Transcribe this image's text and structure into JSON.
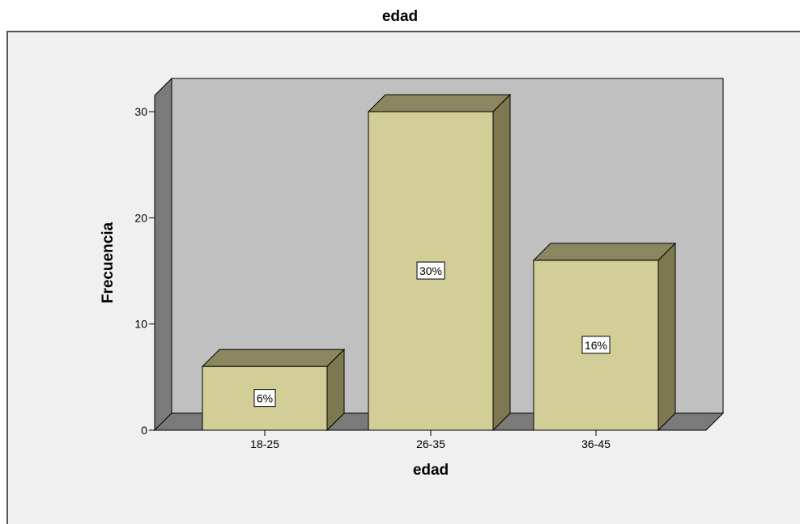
{
  "chart_data": {
    "type": "bar",
    "title": "edad",
    "xlabel": "edad",
    "ylabel": "Frecuencia",
    "categories": [
      "18-25",
      "26-35",
      "36-45"
    ],
    "values": [
      6,
      30,
      16
    ],
    "data_labels": [
      "6%",
      "30%",
      "16%"
    ],
    "y_ticks": [
      0,
      10,
      20,
      30
    ],
    "ylim": [
      0,
      33
    ],
    "grid": false,
    "style": "3d",
    "colors": {
      "bar_front": "#d3ce98",
      "bar_top": "#8b8660",
      "bar_side": "#7d7850",
      "wall_back": "#c0c0c0",
      "wall_left": "#7a7a7a",
      "floor": "#7a7a7a",
      "frame_bg": "#f0f0f0"
    }
  }
}
